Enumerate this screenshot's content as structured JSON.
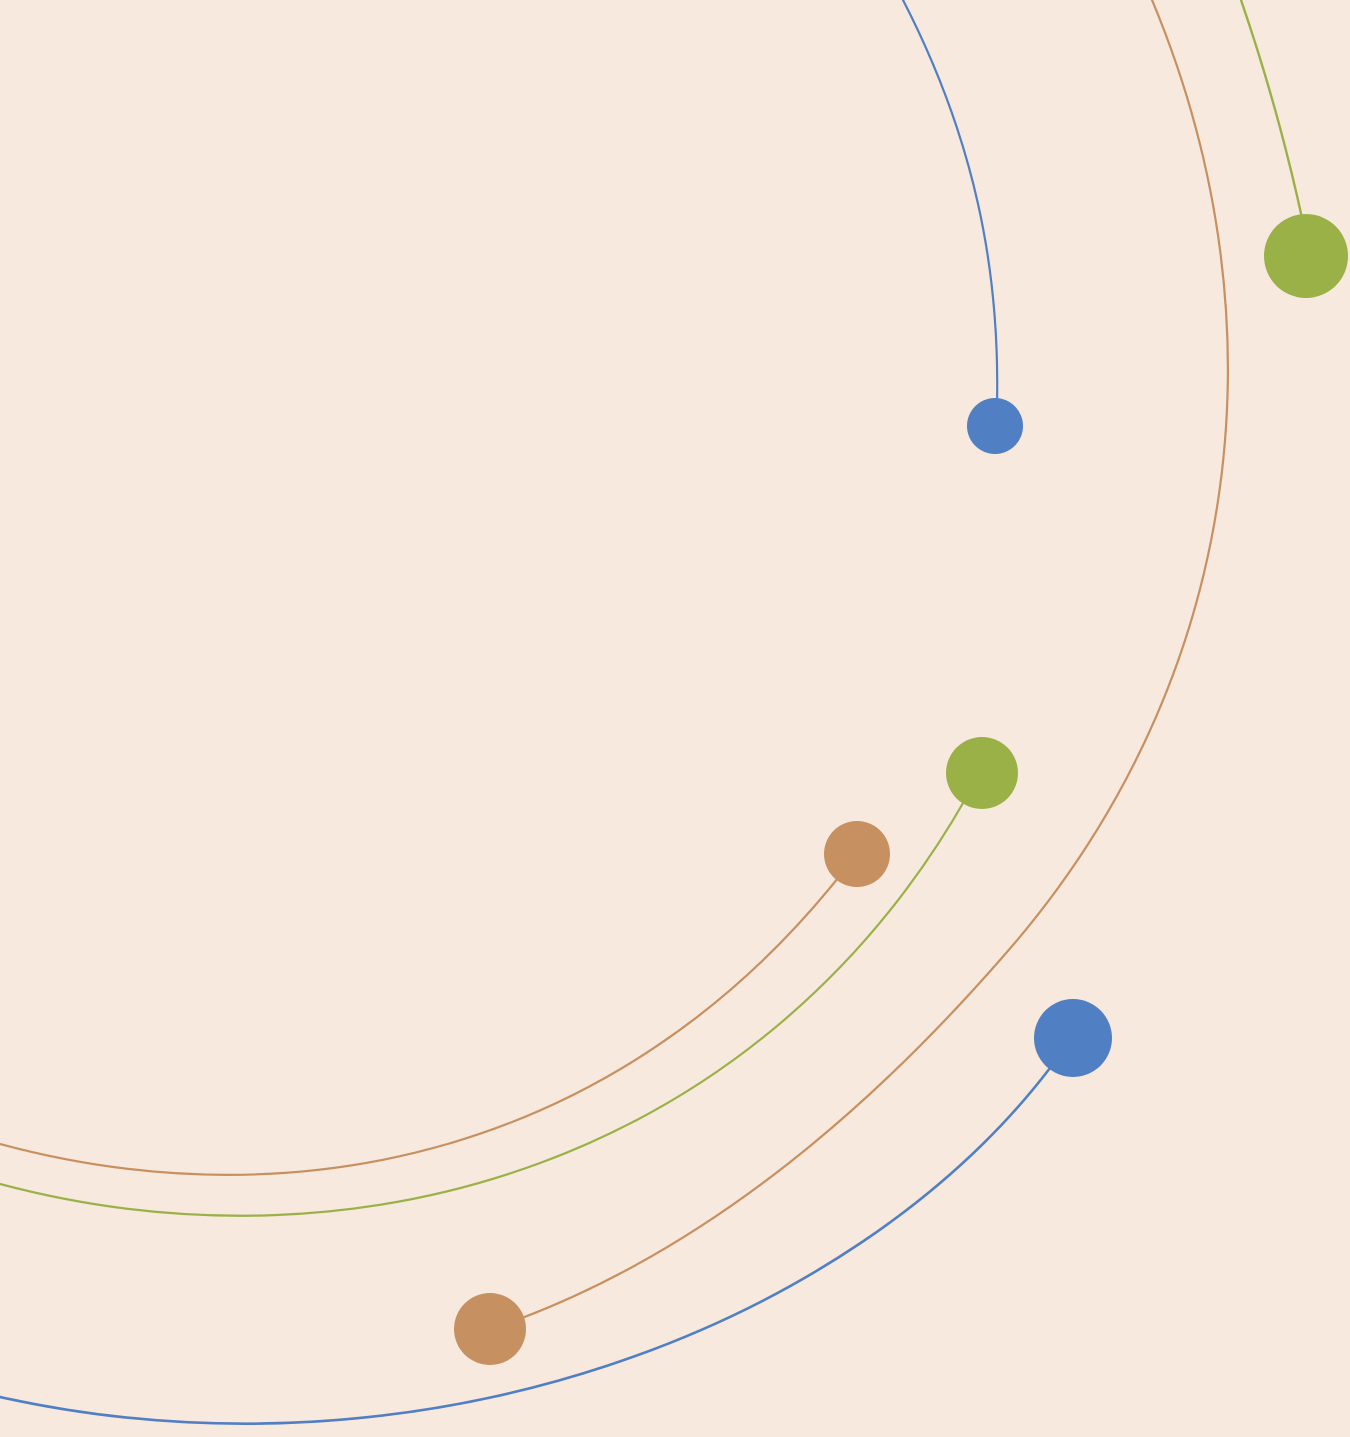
{
  "colors": {
    "background": "#F8E9DE",
    "blue": "#507FC4",
    "green": "#9AB148",
    "orange": "#C79060"
  },
  "decor": {
    "arcs": [
      {
        "name": "arc-blue-upper",
        "color": "blue"
      },
      {
        "name": "arc-orange-outer",
        "color": "orange"
      },
      {
        "name": "arc-green-upper",
        "color": "green"
      },
      {
        "name": "arc-orange-inner",
        "color": "orange"
      },
      {
        "name": "arc-green-inner",
        "color": "green"
      },
      {
        "name": "arc-blue-lower",
        "color": "blue"
      }
    ],
    "dots": [
      {
        "name": "dot-blue-small",
        "color": "blue"
      },
      {
        "name": "dot-green-top-right",
        "color": "green"
      },
      {
        "name": "dot-green-middle",
        "color": "green"
      },
      {
        "name": "dot-orange-middle",
        "color": "orange"
      },
      {
        "name": "dot-blue-large",
        "color": "blue"
      },
      {
        "name": "dot-orange-bottom",
        "color": "orange"
      }
    ]
  }
}
